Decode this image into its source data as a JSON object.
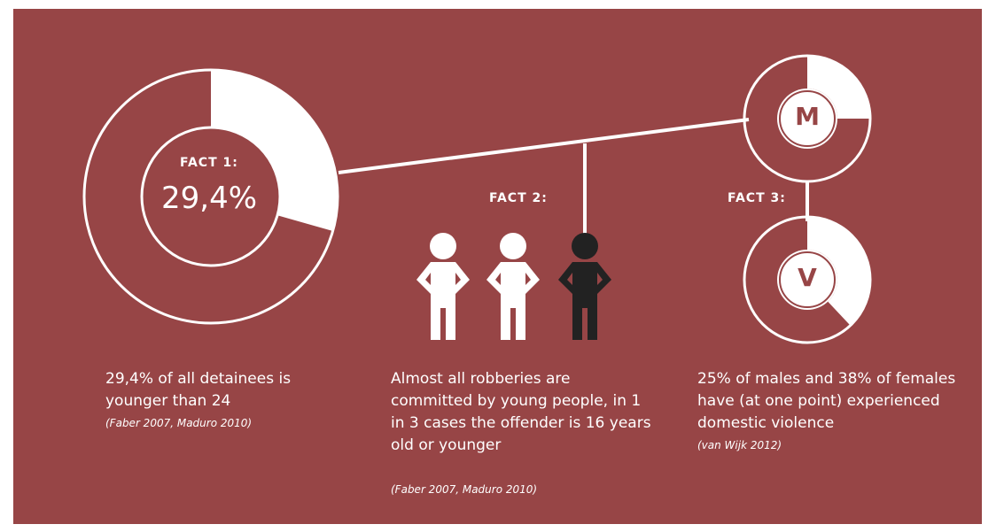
{
  "colors": {
    "panel": "#974546",
    "foreground": "#ffffff",
    "highlight_figure": "#222222"
  },
  "fact1": {
    "label": "FACT 1:",
    "value_text": "29,4%",
    "share": 0.294,
    "description": "29,4% of all detainees is younger than 24",
    "citation": "(Faber 2007, Maduro 2010)"
  },
  "fact2": {
    "label": "FACT 2:",
    "figures": [
      {
        "icon": "person-icon",
        "highlighted": false
      },
      {
        "icon": "person-icon",
        "highlighted": false
      },
      {
        "icon": "person-icon",
        "highlighted": true
      }
    ],
    "description": "Almost all robberies are committed by young people, in 1 in 3 cases the offender is 16 years old or younger",
    "citation": "(Faber 2007, Maduro 2010)"
  },
  "fact3": {
    "label": "FACT 3:",
    "male": {
      "letter": "M",
      "share": 0.25
    },
    "female": {
      "letter": "V",
      "share": 0.38
    },
    "description": "25% of males and 38% of females have (at one point) experienced domestic violence",
    "citation": "(van Wijk 2012)"
  }
}
